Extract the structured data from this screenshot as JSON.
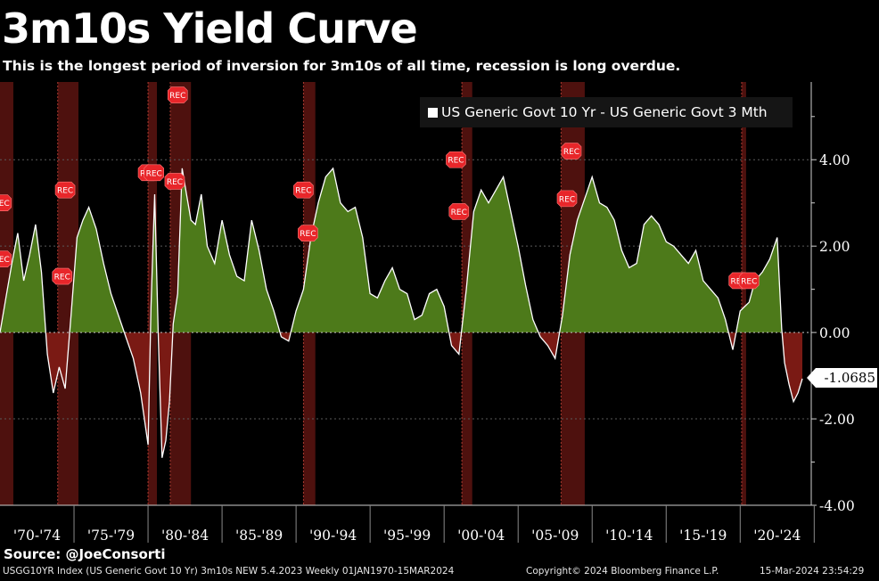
{
  "title": "3m10s Yield Curve",
  "subtitle": "This is the longest period of inversion for 3m10s of all time, recession is long overdue.",
  "source": "Source: @JoeConsorti",
  "footer": {
    "index": "USGG10YR Index (US Generic Govt 10 Yr) 3m10s NEW 5.4.2023  Weekly 01JAN1970-15MAR2024",
    "copyright": "Copyright© 2024 Bloomberg Finance L.P.",
    "timestamp": "15-Mar-2024 23:54:29"
  },
  "last_value_label": "-1.0685",
  "rec_marker_label": "REC",
  "colors": {
    "background": "#000000",
    "positive_fill": "#4d7a1a",
    "negative_fill": "#7a1a14",
    "line": "#ffffff",
    "recession_band": "#5c1410",
    "rec_marker": "#e8262a",
    "grid": "#5a5a5a"
  },
  "chart_data": {
    "type": "area",
    "title": "3m10s Yield Curve",
    "series": [
      {
        "name": "US Generic Govt 10 Yr - US Generic Govt 3 Mth",
        "x": [
          1970.0,
          1970.4,
          1970.8,
          1971.2,
          1971.6,
          1972.0,
          1972.4,
          1972.8,
          1973.2,
          1973.6,
          1974.0,
          1974.4,
          1974.8,
          1975.2,
          1975.6,
          1976.0,
          1976.5,
          1977.0,
          1977.5,
          1978.0,
          1978.5,
          1979.0,
          1979.5,
          1980.0,
          1980.2,
          1980.45,
          1980.7,
          1980.95,
          1981.2,
          1981.45,
          1981.7,
          1982.0,
          1982.3,
          1982.6,
          1982.9,
          1983.2,
          1983.6,
          1984.0,
          1984.5,
          1985.0,
          1985.5,
          1986.0,
          1986.5,
          1987.0,
          1987.5,
          1988.0,
          1988.5,
          1989.0,
          1989.5,
          1990.0,
          1990.5,
          1991.0,
          1991.5,
          1992.0,
          1992.5,
          1993.0,
          1993.5,
          1994.0,
          1994.5,
          1995.0,
          1995.5,
          1996.0,
          1996.5,
          1997.0,
          1997.5,
          1998.0,
          1998.5,
          1999.0,
          1999.5,
          2000.0,
          2000.5,
          2001.0,
          2001.5,
          2002.0,
          2002.5,
          2003.0,
          2003.5,
          2004.0,
          2004.5,
          2005.0,
          2005.5,
          2006.0,
          2006.5,
          2007.0,
          2007.5,
          2008.0,
          2008.5,
          2009.0,
          2009.5,
          2010.0,
          2010.5,
          2011.0,
          2011.5,
          2012.0,
          2012.5,
          2013.0,
          2013.5,
          2014.0,
          2014.5,
          2015.0,
          2015.5,
          2016.0,
          2016.5,
          2017.0,
          2017.5,
          2018.0,
          2018.5,
          2019.0,
          2019.5,
          2020.0,
          2020.3,
          2020.6,
          2021.0,
          2021.5,
          2022.0,
          2022.5,
          2022.8,
          2023.0,
          2023.3,
          2023.6,
          2023.9,
          2024.2
        ],
        "y": [
          0.0,
          0.8,
          1.6,
          2.3,
          1.2,
          1.8,
          2.5,
          1.4,
          -0.5,
          -1.4,
          -0.8,
          -1.3,
          0.4,
          2.2,
          2.6,
          2.9,
          2.4,
          1.6,
          0.9,
          0.4,
          -0.1,
          -0.6,
          -1.4,
          -2.6,
          0.6,
          3.2,
          -0.2,
          -2.9,
          -2.5,
          -1.6,
          0.2,
          0.9,
          3.8,
          3.2,
          2.6,
          2.5,
          3.2,
          2.0,
          1.6,
          2.6,
          1.8,
          1.3,
          1.2,
          2.6,
          1.9,
          1.0,
          0.5,
          -0.1,
          -0.2,
          0.5,
          1.0,
          2.2,
          3.0,
          3.6,
          3.8,
          3.0,
          2.8,
          2.9,
          2.2,
          0.9,
          0.8,
          1.2,
          1.5,
          1.0,
          0.9,
          0.3,
          0.4,
          0.9,
          1.0,
          0.6,
          -0.3,
          -0.5,
          1.0,
          2.8,
          3.3,
          3.0,
          3.3,
          3.6,
          2.8,
          2.0,
          1.1,
          0.3,
          -0.1,
          -0.3,
          -0.6,
          0.4,
          1.8,
          2.6,
          3.1,
          3.6,
          3.0,
          2.9,
          2.6,
          1.9,
          1.5,
          1.6,
          2.5,
          2.7,
          2.5,
          2.1,
          2.0,
          1.8,
          1.6,
          1.9,
          1.2,
          1.0,
          0.8,
          0.3,
          -0.4,
          0.5,
          0.6,
          0.7,
          1.2,
          1.4,
          1.7,
          2.2,
          0.1,
          -0.7,
          -1.2,
          -1.6,
          -1.4,
          -1.07
        ]
      }
    ],
    "ylim": [
      -4.0,
      5.8
    ],
    "yticks": [
      "4.00",
      "2.00",
      "0.00",
      "-2.00",
      "-4.00"
    ],
    "ytick_values": [
      4,
      2,
      0,
      -2,
      -4
    ],
    "xlim": [
      1970.0,
      2024.8
    ],
    "x_period_labels": [
      "'70-'74",
      "'75-'79",
      "'80-'84",
      "'85-'89",
      "'90-'94",
      "'95-'99",
      "'00-'04",
      "'05-'09",
      "'10-'14",
      "'15-'19",
      "'20-'24"
    ],
    "recession_shading": [
      [
        1969.9,
        1970.9
      ],
      [
        1973.9,
        1975.3
      ],
      [
        1980.0,
        1980.6
      ],
      [
        1981.5,
        1982.9
      ],
      [
        1990.5,
        1991.3
      ],
      [
        2001.2,
        2001.9
      ],
      [
        2007.9,
        2009.5
      ],
      [
        2020.1,
        2020.4
      ]
    ],
    "rec_markers": [
      {
        "x": 1970.1,
        "y": 3.0
      },
      {
        "x": 1970.1,
        "y": 1.7
      },
      {
        "x": 1974.4,
        "y": 3.3
      },
      {
        "x": 1974.2,
        "y": 1.3
      },
      {
        "x": 1980.0,
        "y": 3.7
      },
      {
        "x": 1980.4,
        "y": 3.7
      },
      {
        "x": 1982.0,
        "y": 5.5
      },
      {
        "x": 1981.8,
        "y": 3.5
      },
      {
        "x": 1990.5,
        "y": 3.3
      },
      {
        "x": 1990.8,
        "y": 2.3
      },
      {
        "x": 2000.8,
        "y": 4.0
      },
      {
        "x": 2001.0,
        "y": 2.8
      },
      {
        "x": 2008.6,
        "y": 4.2
      },
      {
        "x": 2008.3,
        "y": 3.1
      },
      {
        "x": 2019.9,
        "y": 1.2
      },
      {
        "x": 2020.6,
        "y": 1.2
      }
    ],
    "grid": true,
    "legend": "top-right"
  }
}
